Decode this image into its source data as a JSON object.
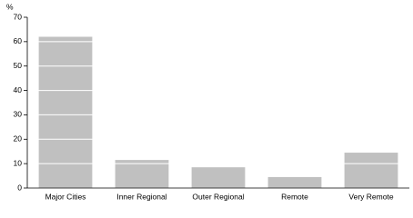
{
  "chart_data": {
    "type": "bar",
    "y_label": "%",
    "categories": [
      "Major Cities",
      "Inner Regional",
      "Outer Regional",
      "Remote",
      "Very Remote"
    ],
    "values": [
      62,
      11.5,
      8.5,
      4.5,
      14.5
    ],
    "color": "#c0c0c0",
    "ylim": [
      0,
      70
    ],
    "yticks": [
      0,
      10,
      20,
      30,
      40,
      50,
      60,
      70
    ],
    "grid": true
  }
}
